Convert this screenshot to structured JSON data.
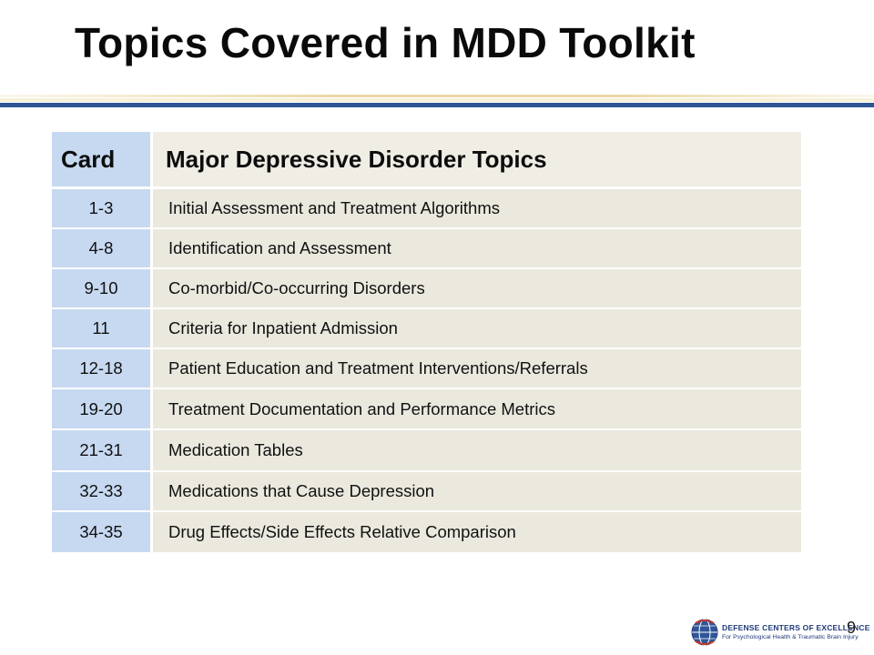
{
  "slide": {
    "title": "Topics Covered in MDD Toolkit",
    "page_number": "9"
  },
  "table": {
    "headers": [
      "Card",
      "Major Depressive Disorder Topics"
    ],
    "rows": [
      {
        "card": "1-3",
        "topic": "Initial Assessment and Treatment Algorithms"
      },
      {
        "card": "4-8",
        "topic": "Identification and Assessment"
      },
      {
        "card": "9-10",
        "topic": "Co-morbid/Co-occurring Disorders"
      },
      {
        "card": "11",
        "topic": "Criteria for Inpatient Admission"
      },
      {
        "card": "12-18",
        "topic": "Patient Education and Treatment Interventions/Referrals"
      },
      {
        "card": "19-20",
        "topic": "Treatment Documentation and Performance Metrics"
      },
      {
        "card": "21-31",
        "topic": "Medication Tables"
      },
      {
        "card": "32-33",
        "topic": "Medications that Cause Depression"
      },
      {
        "card": "34-35",
        "topic": "Drug Effects/Side Effects Relative Comparison"
      }
    ]
  },
  "logo": {
    "line1": "DEFENSE CENTERS OF EXCELLENCE",
    "line2": "For Psychological Health & Traumatic Brain Injury",
    "icon": "globe-icon"
  },
  "colors": {
    "title": "#0a0a0a",
    "rule_blue": "#2f5597",
    "rule_gold": "#e9d7a4",
    "card_col": "#c6d9f1",
    "topic_col": "#ebe8de",
    "header_topic": "#f0ede4",
    "logo_blue": "#1f3a7a"
  }
}
